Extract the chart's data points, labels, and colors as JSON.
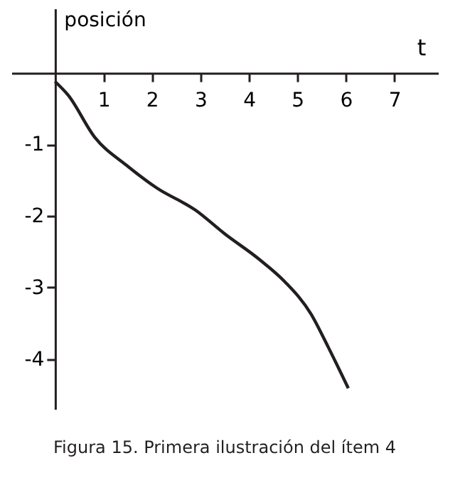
{
  "chart_data": {
    "type": "line",
    "xlabel": "t",
    "ylabel": "posición",
    "annotations": [
      "Figura 15.  Primera ilustración del ítem 4"
    ],
    "x": [
      0,
      0.27,
      0.82,
      1.47,
      2.1,
      2.9,
      3.5,
      4.2,
      4.74,
      5.28,
      5.64,
      6.05
    ],
    "series": [
      {
        "color": "#231f20",
        "values": [
          -0.12,
          -0.31,
          -0.9,
          -1.29,
          -1.61,
          -1.92,
          -2.25,
          -2.6,
          -2.92,
          -3.37,
          -3.84,
          -4.41
        ]
      }
    ],
    "xlim": [
      -0.9,
      7.9
    ],
    "ylim": [
      -4.7,
      0.9
    ],
    "xticks": [
      1,
      2,
      3,
      4,
      5,
      6,
      7
    ],
    "yticks": [
      -1,
      -2,
      -3,
      -4
    ],
    "grid": false,
    "marker": "none",
    "line_style": "solid"
  }
}
